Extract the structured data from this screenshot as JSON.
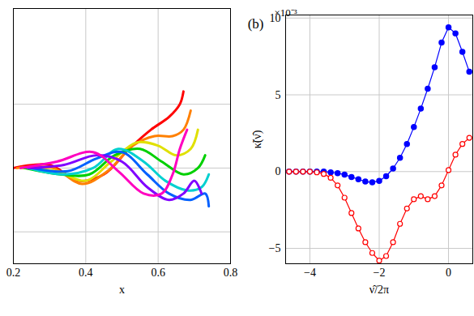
{
  "chart_data": [
    {
      "type": "line",
      "x_label": "x",
      "xlim": [
        0.2,
        0.8
      ],
      "xticks": [
        0.2,
        0.4,
        0.6,
        0.8
      ],
      "ylim": [
        -0.15,
        0.25
      ],
      "yticks": [
        -0.1,
        0,
        0.1
      ],
      "grid": true,
      "tick_labels": "x",
      "series": [
        {
          "color": "#ff0000",
          "x": [
            0.2,
            0.3,
            0.38,
            0.45,
            0.52,
            0.58,
            0.63,
            0.66,
            0.67
          ],
          "values": [
            0,
            0.005,
            -0.02,
            -0.01,
            0.03,
            0.06,
            0.08,
            0.1,
            0.12
          ]
        },
        {
          "color": "#ff8000",
          "x": [
            0.21,
            0.31,
            0.39,
            0.46,
            0.53,
            0.59,
            0.64,
            0.67,
            0.69
          ],
          "values": [
            0,
            0,
            -0.025,
            -0.005,
            0.035,
            0.05,
            0.05,
            0.06,
            0.09
          ]
        },
        {
          "color": "#e0e000",
          "x": [
            0.22,
            0.32,
            0.4,
            0.47,
            0.54,
            0.6,
            0.65,
            0.69,
            0.71
          ],
          "values": [
            0,
            -0.005,
            -0.02,
            0.01,
            0.04,
            0.035,
            0.02,
            0.03,
            0.06
          ]
        },
        {
          "color": "#00d000",
          "x": [
            0.23,
            0.33,
            0.41,
            0.48,
            0.55,
            0.61,
            0.67,
            0.71,
            0.73
          ],
          "values": [
            0,
            -0.01,
            -0.01,
            0.02,
            0.03,
            0.01,
            -0.01,
            0,
            0.02
          ]
        },
        {
          "color": "#00d0d0",
          "x": [
            0.24,
            0.34,
            0.42,
            0.49,
            0.56,
            0.62,
            0.68,
            0.72,
            0.74
          ],
          "values": [
            0,
            -0.01,
            0,
            0.03,
            0.01,
            -0.02,
            -0.035,
            -0.03,
            -0.01
          ]
        },
        {
          "color": "#0060ff",
          "x": [
            0.25,
            0.35,
            0.43,
            0.5,
            0.57,
            0.63,
            0.69,
            0.73,
            0.74
          ],
          "values": [
            0,
            -0.005,
            0.015,
            0.025,
            -0.01,
            -0.04,
            -0.05,
            -0.04,
            -0.06
          ]
        },
        {
          "color": "#8000ff",
          "x": [
            0.24,
            0.34,
            0.43,
            0.5,
            0.57,
            0.63,
            0.67,
            0.7,
            0.72
          ],
          "values": [
            0,
            0.005,
            0.02,
            0.01,
            -0.03,
            -0.05,
            -0.04,
            -0.02,
            -0.04
          ]
        },
        {
          "color": "#ff00c0",
          "x": [
            0.22,
            0.32,
            0.42,
            0.49,
            0.56,
            0.61,
            0.64,
            0.66,
            0.68
          ],
          "values": [
            0,
            0.01,
            0.025,
            -0.005,
            -0.04,
            -0.04,
            -0.01,
            0.03,
            0.06
          ]
        }
      ]
    },
    {
      "type": "line",
      "annotation": "(b)",
      "y_multiplier": "×10⁻³",
      "x_label": "ν̂/2π",
      "y_label": "κ̃(ν̂)",
      "xlim": [
        -4.7,
        0.7
      ],
      "xticks": [
        -4,
        -2,
        0
      ],
      "ylim": [
        -6,
        10.2
      ],
      "yticks": [
        -5,
        0,
        5,
        10
      ],
      "grid": true,
      "x": [
        -4.6,
        -4.4,
        -4.2,
        -4.0,
        -3.8,
        -3.6,
        -3.4,
        -3.2,
        -3.0,
        -2.8,
        -2.6,
        -2.4,
        -2.2,
        -2.0,
        -1.8,
        -1.6,
        -1.4,
        -1.2,
        -1.0,
        -0.8,
        -0.6,
        -0.4,
        -0.2,
        0,
        0.2,
        0.4,
        0.6
      ],
      "series": [
        {
          "color": "#0000ff",
          "marker": "filled",
          "values": [
            0,
            0,
            0,
            0,
            0,
            0,
            -0.05,
            -0.1,
            -0.2,
            -0.35,
            -0.5,
            -0.65,
            -0.7,
            -0.6,
            -0.3,
            0.2,
            0.9,
            1.8,
            2.9,
            4.1,
            5.4,
            6.8,
            8.4,
            9.4,
            9.0,
            7.8,
            6.5
          ]
        },
        {
          "color": "#ff0000",
          "marker": "open",
          "values": [
            0,
            0,
            0,
            0,
            -0.05,
            -0.15,
            -0.4,
            -0.9,
            -1.7,
            -2.7,
            -3.7,
            -4.6,
            -5.3,
            -5.8,
            -5.5,
            -4.6,
            -3.4,
            -2.4,
            -1.8,
            -1.6,
            -1.8,
            -1.6,
            -0.9,
            0.1,
            1.1,
            1.8,
            2.2
          ]
        }
      ]
    }
  ]
}
